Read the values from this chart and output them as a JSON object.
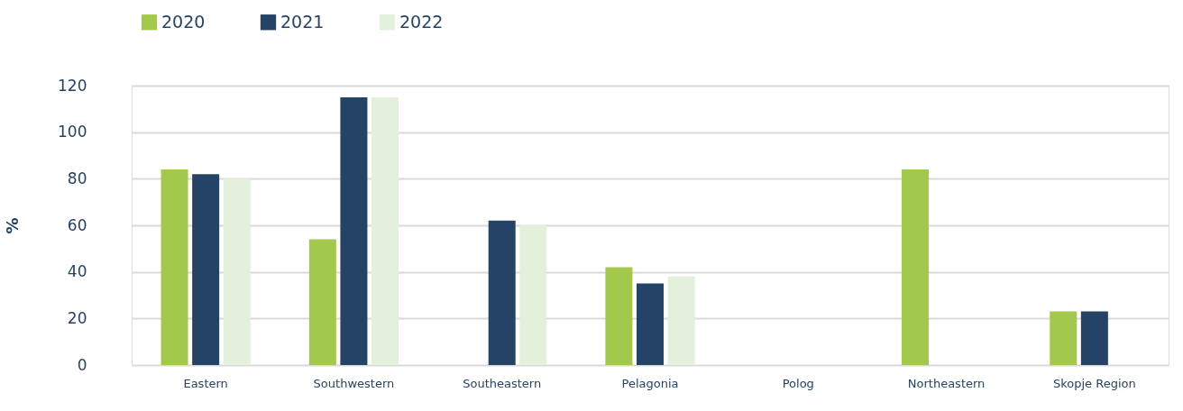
{
  "chart_data": {
    "type": "bar",
    "ylabel": "%",
    "categories": [
      "Eastern",
      "Southwestern",
      "Southeastern",
      "Pelagonia",
      "Polog",
      "Northeastern",
      "Skopje Region"
    ],
    "series": [
      {
        "name": "2020",
        "color": "#a2c84c",
        "values": [
          84,
          54,
          null,
          42,
          null,
          84,
          23
        ]
      },
      {
        "name": "2021",
        "color": "#244366",
        "values": [
          82,
          115,
          62,
          35,
          null,
          null,
          23
        ]
      },
      {
        "name": "2022",
        "color": "#e2f0dc",
        "values": [
          80,
          115,
          60,
          38,
          null,
          null,
          null
        ]
      }
    ],
    "ylim": [
      0,
      120
    ],
    "yticks": [
      0,
      20,
      40,
      60,
      80,
      100,
      120
    ],
    "grid": "y",
    "legend": "top"
  }
}
